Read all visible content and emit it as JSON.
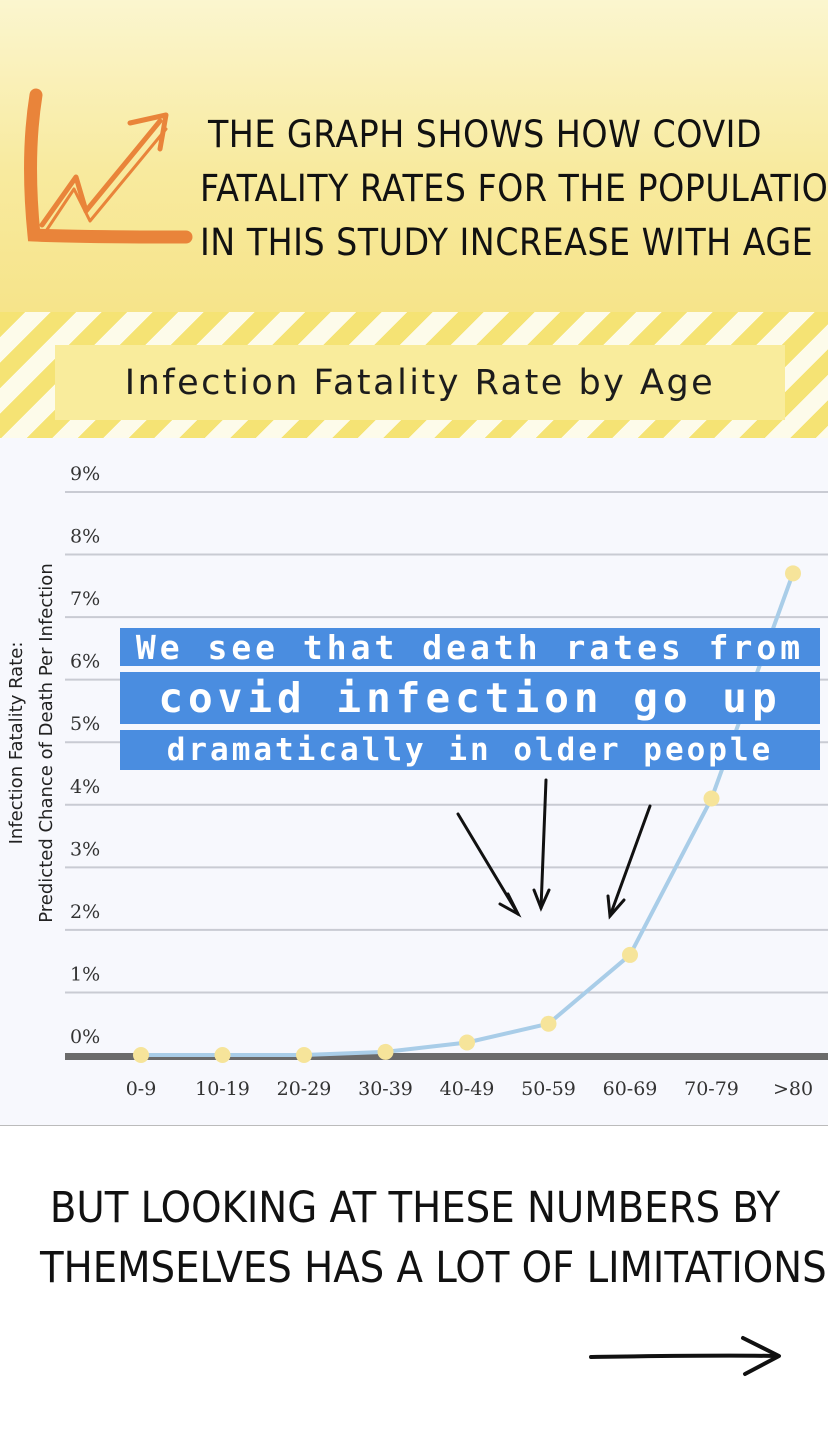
{
  "headline": {
    "line1": "THE GRAPH SHOWS HOW COVID",
    "line2": "FATALITY RATES FOR THE POPULATION",
    "line3": "IN THIS STUDY INCREASE WITH AGE"
  },
  "caption": {
    "line1": "We see that death rates from",
    "line2": "covid infection go up",
    "line3": "dramatically in older people"
  },
  "footer": {
    "line1": "BUT LOOKING AT THESE NUMBERS BY",
    "line2": "THEMSELVES HAS A LOT OF LIMITATIONS"
  },
  "icons": {
    "logo": "trend-up-arrow-icon",
    "next": "arrow-right-icon",
    "annotations": "hand-drawn-down-arrows"
  },
  "colors": {
    "banner": "#f8ea9e",
    "stripe": "#f5e374",
    "line": "#a9cde8",
    "marker": "#f6e49a",
    "caption_bg": "#4a8de0",
    "logo": "#e9843a"
  },
  "chart_data": {
    "type": "line",
    "title": "Infection Fatality Rate by Age",
    "ylabel_line1": "Infection Fatality Rate:",
    "ylabel_line2": "Predicted Chance of Death Per Infection",
    "xlabel": "",
    "categories": [
      "0-9",
      "10-19",
      "20-29",
      "30-39",
      "40-49",
      "50-59",
      "60-69",
      "70-79",
      ">80"
    ],
    "y_ticks": [
      "0%",
      "1%",
      "2%",
      "3%",
      "4%",
      "5%",
      "6%",
      "7%",
      "8%",
      "9%"
    ],
    "ylim": [
      0,
      9
    ],
    "grid": true,
    "series": [
      {
        "name": "Infection Fatality Rate",
        "values": [
          0.0,
          0.0,
          0.0,
          0.05,
          0.2,
          0.5,
          1.6,
          4.1,
          7.7
        ]
      }
    ]
  }
}
